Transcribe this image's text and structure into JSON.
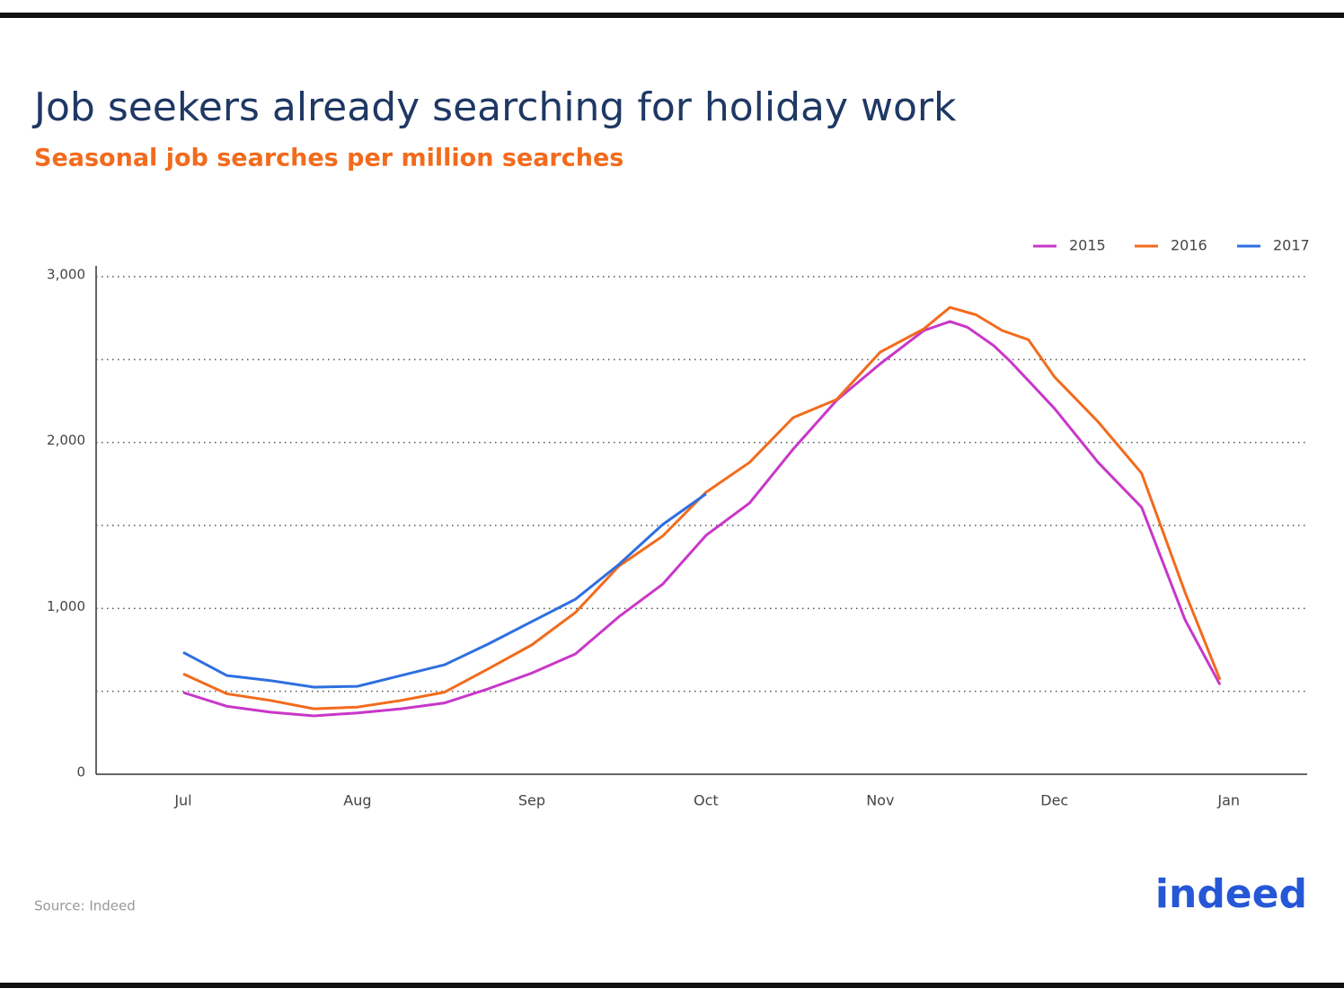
{
  "chart_data": {
    "type": "line",
    "title": "Job seekers already searching for holiday work",
    "subtitle": "Seasonal job searches per million searches",
    "source": "Source: Indeed",
    "logo": "indeed",
    "xlim": [
      -0.5,
      6.45
    ],
    "xticks": [
      {
        "value": 0,
        "label": "Jul"
      },
      {
        "value": 1,
        "label": "Aug"
      },
      {
        "value": 2,
        "label": "Sep"
      },
      {
        "value": 3,
        "label": "Oct"
      },
      {
        "value": 4,
        "label": "Nov"
      },
      {
        "value": 5,
        "label": "Dec"
      },
      {
        "value": 6,
        "label": "Jan"
      }
    ],
    "ylim": [
      0,
      3000
    ],
    "yticks": [
      0,
      {
        "value": 1000,
        "label": "1,000"
      },
      {
        "value": 2000,
        "label": "2,000"
      },
      {
        "value": 3000,
        "label": "3,000"
      }
    ],
    "ygrid": [
      500,
      1000,
      1500,
      2000,
      2500,
      3000
    ],
    "legend": "top-right",
    "series": [
      {
        "name": "2015",
        "color": "#c837c9",
        "x": [
          0,
          0.25,
          0.5,
          0.75,
          1.0,
          1.25,
          1.5,
          1.75,
          2.0,
          2.25,
          2.5,
          2.75,
          3.0,
          3.25,
          3.5,
          3.75,
          4.0,
          4.25,
          4.4,
          4.5,
          4.65,
          4.75,
          5.0,
          5.25,
          5.5,
          5.75,
          5.95
        ],
        "values": [
          493,
          410,
          374,
          352,
          370,
          395,
          430,
          515,
          610,
          725,
          950,
          1145,
          1440,
          1635,
          1960,
          2255,
          2475,
          2675,
          2730,
          2695,
          2585,
          2485,
          2205,
          1880,
          1610,
          930,
          540
        ]
      },
      {
        "name": "2016",
        "color": "#f26b1d",
        "x": [
          0,
          0.25,
          0.5,
          0.75,
          1.0,
          1.25,
          1.5,
          1.75,
          2.0,
          2.25,
          2.5,
          2.75,
          3.0,
          3.25,
          3.5,
          3.75,
          4.0,
          4.25,
          4.4,
          4.55,
          4.7,
          4.85,
          5.0,
          5.25,
          5.5,
          5.75,
          5.95
        ],
        "values": [
          605,
          485,
          445,
          395,
          405,
          445,
          495,
          635,
          780,
          975,
          1255,
          1435,
          1700,
          1880,
          2150,
          2260,
          2545,
          2685,
          2815,
          2770,
          2675,
          2620,
          2395,
          2125,
          1815,
          1095,
          570
        ]
      },
      {
        "name": "2017",
        "color": "#2e6fe0",
        "x": [
          0,
          0.25,
          0.5,
          0.75,
          1.0,
          1.25,
          1.5,
          1.75,
          2.0,
          2.25,
          2.5,
          2.75,
          3.0
        ],
        "values": [
          735,
          595,
          565,
          525,
          530,
          595,
          660,
          785,
          920,
          1055,
          1265,
          1505,
          1690
        ]
      }
    ]
  }
}
